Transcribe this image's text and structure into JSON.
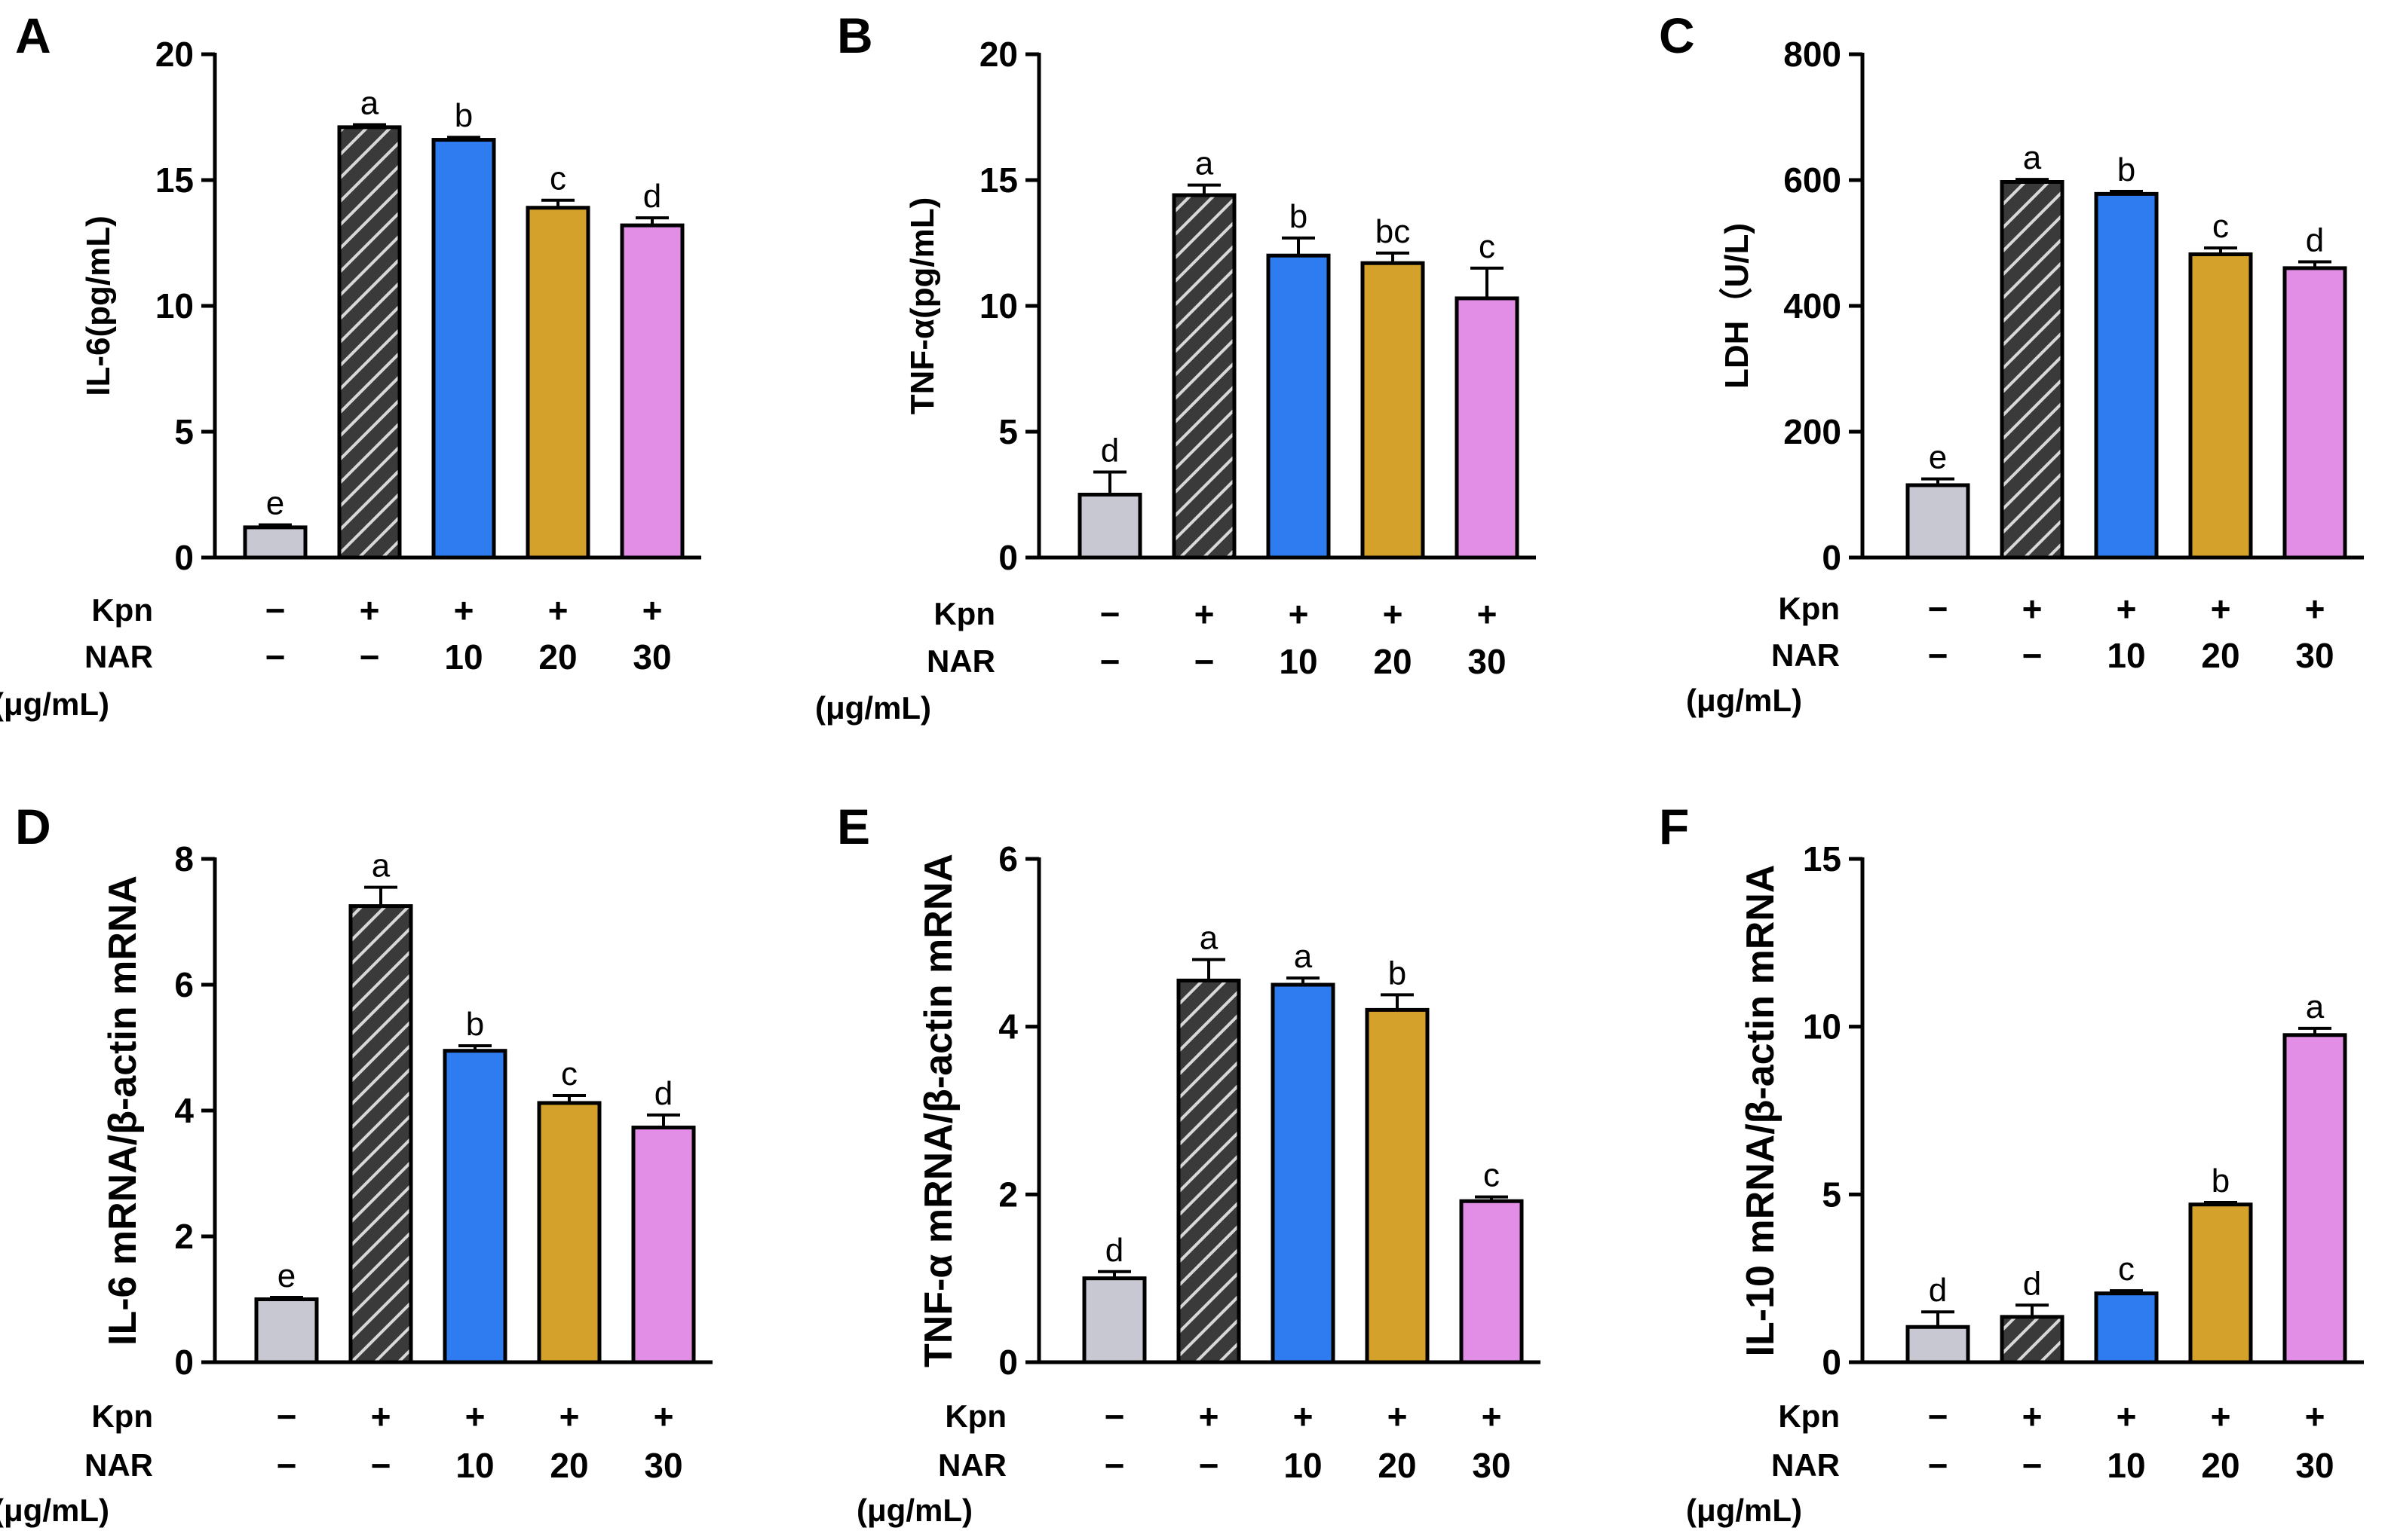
{
  "colors": {
    "control": "#c8c8d2",
    "kpn": "#3a3a3a",
    "nar10": "#2f7cf0",
    "nar20": "#d4a22a",
    "nar30": "#e38ee6",
    "hatch": "#d8d8d8"
  },
  "conditions": {
    "kpn_label": "Kpn",
    "nar_label": "NAR",
    "unit_label": "(μg/mL)",
    "kpn": [
      "−",
      "+",
      "+",
      "+",
      "+"
    ],
    "nar": [
      "−",
      "−",
      "10",
      "20",
      "30"
    ]
  },
  "chart_data": [
    {
      "panel": "A",
      "type": "bar",
      "ylabel": "IL-6(pg/mL)",
      "ylim": [
        0,
        20
      ],
      "yticks": [
        0,
        5,
        10,
        15,
        20
      ],
      "categories": [
        "Control",
        "Kpn",
        "Kpn+NAR10",
        "Kpn+NAR20",
        "Kpn+NAR30"
      ],
      "values": [
        1.2,
        17.1,
        16.6,
        13.9,
        13.2
      ],
      "errors": [
        0.1,
        0.1,
        0.1,
        0.3,
        0.3
      ],
      "letters": [
        "e",
        "a",
        "b",
        "c",
        "d"
      ]
    },
    {
      "panel": "B",
      "type": "bar",
      "ylabel": "TNF-α(pg/mL)",
      "ylim": [
        0,
        20
      ],
      "yticks": [
        0,
        5,
        10,
        15,
        20
      ],
      "categories": [
        "Control",
        "Kpn",
        "Kpn+NAR10",
        "Kpn+NAR20",
        "Kpn+NAR30"
      ],
      "values": [
        2.5,
        14.4,
        12.0,
        11.7,
        10.3
      ],
      "errors": [
        0.9,
        0.4,
        0.7,
        0.4,
        1.2
      ],
      "letters": [
        "d",
        "a",
        "b",
        "bc",
        "c"
      ]
    },
    {
      "panel": "C",
      "type": "bar",
      "ylabel": "LDH（U/L)",
      "ylim": [
        0,
        800
      ],
      "yticks": [
        0,
        200,
        400,
        600,
        800
      ],
      "categories": [
        "Control",
        "Kpn",
        "Kpn+NAR10",
        "Kpn+NAR20",
        "Kpn+NAR30"
      ],
      "values": [
        115,
        597,
        578,
        482,
        460
      ],
      "errors": [
        10,
        4,
        4,
        10,
        10
      ],
      "letters": [
        "e",
        "a",
        "b",
        "c",
        "d"
      ]
    },
    {
      "panel": "D",
      "type": "bar",
      "ylabel": "IL-6 mRNA/β-actin mRNA",
      "ylim": [
        0,
        8
      ],
      "yticks": [
        0,
        2,
        4,
        6,
        8
      ],
      "categories": [
        "Control",
        "Kpn",
        "Kpn+NAR10",
        "Kpn+NAR20",
        "Kpn+NAR30"
      ],
      "values": [
        1.0,
        7.25,
        4.95,
        4.12,
        3.73
      ],
      "errors": [
        0.03,
        0.3,
        0.08,
        0.12,
        0.2
      ],
      "letters": [
        "e",
        "a",
        "b",
        "c",
        "d"
      ]
    },
    {
      "panel": "E",
      "type": "bar",
      "ylabel": "TNF-α mRNA/β-actin mRNA",
      "ylim": [
        0,
        6
      ],
      "yticks": [
        0,
        2,
        4,
        6
      ],
      "categories": [
        "Control",
        "Kpn",
        "Kpn+NAR10",
        "Kpn+NAR20",
        "Kpn+NAR30"
      ],
      "values": [
        1.0,
        4.55,
        4.5,
        4.2,
        1.92
      ],
      "errors": [
        0.08,
        0.25,
        0.08,
        0.18,
        0.05
      ],
      "letters": [
        "d",
        "a",
        "a",
        "b",
        "c"
      ]
    },
    {
      "panel": "F",
      "type": "bar",
      "ylabel": "IL-10 mRNA/β-actin mRNA",
      "ylim": [
        0,
        15
      ],
      "yticks": [
        0,
        5,
        10,
        15
      ],
      "categories": [
        "Control",
        "Kpn",
        "Kpn+NAR10",
        "Kpn+NAR20",
        "Kpn+NAR30"
      ],
      "values": [
        1.05,
        1.35,
        2.05,
        4.7,
        9.75
      ],
      "errors": [
        0.45,
        0.35,
        0.08,
        0.06,
        0.2
      ],
      "letters": [
        "d",
        "d",
        "c",
        "b",
        "a"
      ]
    }
  ]
}
